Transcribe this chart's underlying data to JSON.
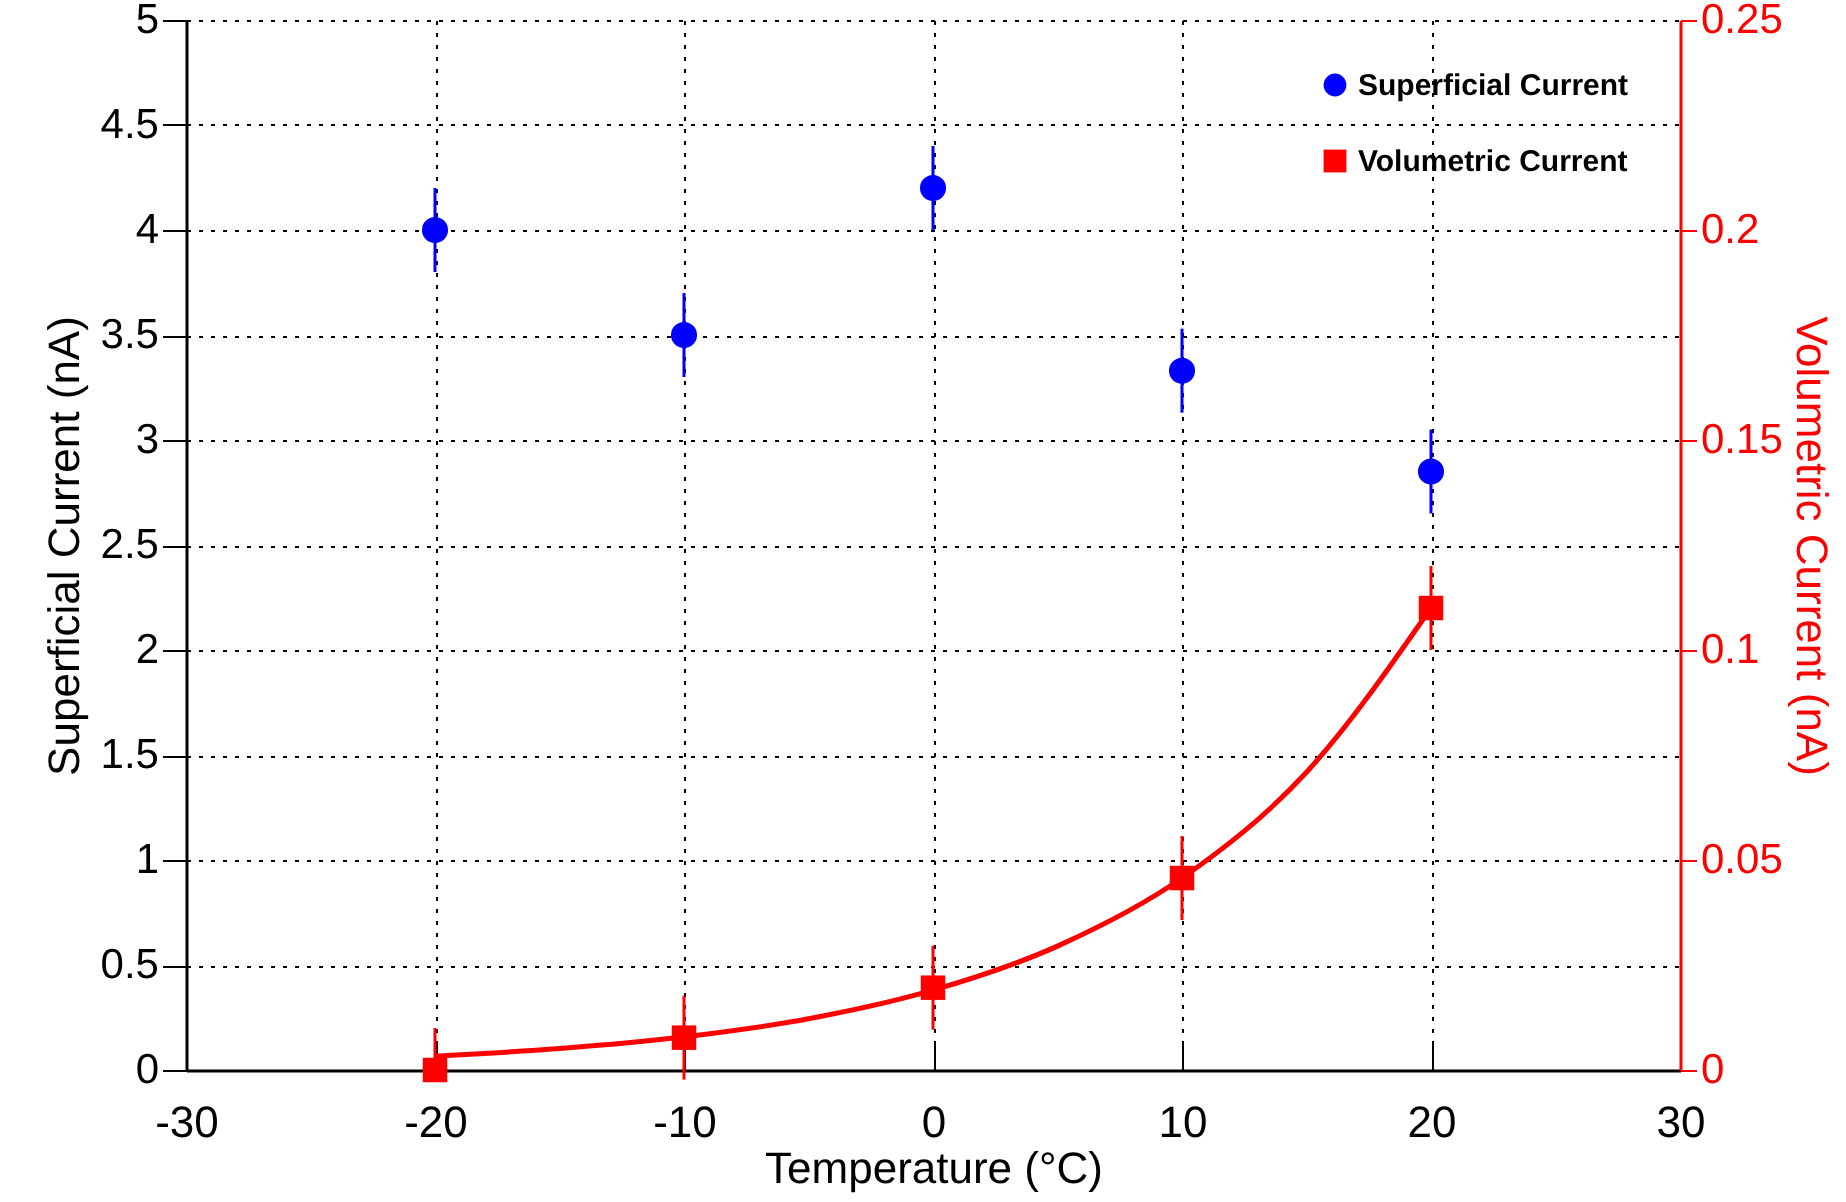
{
  "chart_data": {
    "type": "scatter",
    "xlabel": "Temperature (°C)",
    "ylabel": "Superficial Current (nA)",
    "y2label": "Volumetric Current (nA)",
    "x": [
      -20,
      -10,
      0,
      10,
      20
    ],
    "series": [
      {
        "name": "Superficial Current",
        "color": "#0000ff",
        "marker": "circle",
        "values": [
          4.0,
          3.5,
          4.2,
          3.33,
          2.85
        ],
        "errors": [
          0.2,
          0.2,
          0.2,
          0.2,
          0.2
        ]
      },
      {
        "name": "Volumetric Current",
        "color": "#ff0000",
        "marker": "square",
        "axis": "y2",
        "values": [
          0,
          0.0077,
          0.0196,
          0.0457,
          0.11
        ],
        "errors": [
          [
            0,
            0.01
          ],
          0.01,
          0.01,
          0.01,
          0.01
        ]
      },
      {
        "type": "line",
        "color": "#ff0000",
        "axis": "y2",
        "marker": "none",
        "x": [
          -20,
          -15,
          -10,
          -5,
          0,
          5,
          10,
          15,
          20
        ],
        "values": [
          0.0033,
          0.0051,
          0.0079,
          0.0122,
          0.019,
          0.0295,
          0.0457,
          0.0709,
          0.11
        ]
      }
    ],
    "xlim": [
      -30,
      30
    ],
    "xticks": [
      -30,
      -20,
      -10,
      0,
      10,
      20,
      30
    ],
    "ylim": [
      0,
      5
    ],
    "yticks": [
      0,
      0.5,
      1,
      1.5,
      2,
      2.5,
      3,
      3.5,
      4,
      4.5,
      5
    ],
    "y2lim": [
      0,
      0.25
    ],
    "y2ticks": [
      0,
      0.05,
      0.1,
      0.15,
      0.2,
      0.25
    ],
    "grid": true,
    "legend": "top right",
    "line_style": "solid"
  }
}
